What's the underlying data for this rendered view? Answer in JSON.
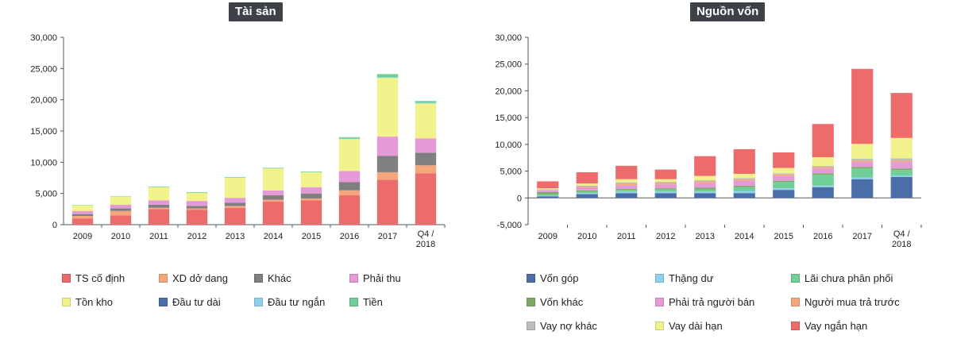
{
  "chart_data": [
    {
      "type": "bar",
      "stacked": true,
      "title": "Tài sản",
      "xlabel": "",
      "ylabel": "",
      "ylim": [
        0,
        30000
      ],
      "yticks": [
        0,
        5000,
        10000,
        15000,
        20000,
        25000,
        30000
      ],
      "ytick_labels": [
        "0",
        "5,000",
        "10,000",
        "15,000",
        "20,000",
        "25,000",
        "30,000"
      ],
      "grid": false,
      "legend_position": "bottom",
      "categories": [
        "2009",
        "2010",
        "2011",
        "2012",
        "2013",
        "2014",
        "2015",
        "2016",
        "2017",
        "Q4 / 2018"
      ],
      "series": [
        {
          "name": "TS cố định",
          "color": "#ee6b6b",
          "values": [
            1000,
            1500,
            2500,
            2400,
            2700,
            3700,
            3900,
            4700,
            7200,
            8200
          ]
        },
        {
          "name": "XD dở dang",
          "color": "#f4a77c",
          "values": [
            400,
            700,
            200,
            200,
            300,
            300,
            300,
            800,
            1200,
            1300
          ]
        },
        {
          "name": "Khác",
          "color": "#7f7f7f",
          "values": [
            300,
            400,
            500,
            400,
            500,
            700,
            800,
            1300,
            2600,
            2000
          ]
        },
        {
          "name": "Phải thu",
          "color": "#e59ad8",
          "values": [
            500,
            600,
            700,
            800,
            800,
            800,
            1000,
            1800,
            3100,
            2300
          ]
        },
        {
          "name": "Tồn kho",
          "color": "#f2f28c",
          "values": [
            900,
            1300,
            2100,
            1300,
            3200,
            3500,
            2400,
            5100,
            9400,
            5600
          ]
        },
        {
          "name": "Đầu tư dài",
          "color": "#4a6ea8",
          "values": [
            0,
            0,
            0,
            0,
            0,
            0,
            0,
            0,
            0,
            0
          ]
        },
        {
          "name": "Đầu tư ngắn",
          "color": "#8fd0ec",
          "values": [
            0,
            0,
            0,
            0,
            0,
            0,
            0,
            100,
            100,
            100
          ]
        },
        {
          "name": "Tiền",
          "color": "#6fcf97",
          "values": [
            50,
            50,
            100,
            100,
            100,
            100,
            100,
            200,
            500,
            300
          ]
        }
      ]
    },
    {
      "type": "bar",
      "stacked": true,
      "title": "Nguồn vốn",
      "xlabel": "",
      "ylabel": "",
      "ylim": [
        -5000,
        30000
      ],
      "yticks": [
        -5000,
        0,
        5000,
        10000,
        15000,
        20000,
        25000,
        30000
      ],
      "ytick_labels": [
        "-5,000",
        "0",
        "5,000",
        "10,000",
        "15,000",
        "20,000",
        "25,000",
        "30,000"
      ],
      "grid": false,
      "legend_position": "bottom",
      "categories": [
        "2009",
        "2010",
        "2011",
        "2012",
        "2013",
        "2014",
        "2015",
        "2016",
        "2017",
        "Q4 / 2018"
      ],
      "series": [
        {
          "name": "Vốn góp",
          "color": "#4a6ea8",
          "values": [
            300,
            700,
            900,
            900,
            900,
            900,
            1500,
            2000,
            3500,
            3900
          ]
        },
        {
          "name": "Thặng dư",
          "color": "#8fd0ec",
          "values": [
            100,
            200,
            300,
            300,
            300,
            400,
            300,
            300,
            300,
            300
          ]
        },
        {
          "name": "Lãi chưa phân phối",
          "color": "#6fcf97",
          "values": [
            300,
            300,
            300,
            400,
            400,
            700,
            1200,
            2000,
            1700,
            1000
          ]
        },
        {
          "name": "Vốn khác",
          "color": "#7fa868",
          "values": [
            400,
            200,
            200,
            200,
            300,
            300,
            200,
            300,
            300,
            300
          ]
        },
        {
          "name": "Phải trả người bán",
          "color": "#e59ad8",
          "values": [
            300,
            500,
            700,
            700,
            900,
            900,
            900,
            900,
            900,
            1200
          ]
        },
        {
          "name": "Người mua trả trước",
          "color": "#f4a77c",
          "values": [
            100,
            200,
            300,
            300,
            300,
            300,
            300,
            300,
            300,
            300
          ]
        },
        {
          "name": "Vay nợ khác",
          "color": "#bdbdbd",
          "values": [
            100,
            200,
            200,
            200,
            200,
            200,
            200,
            200,
            300,
            400
          ]
        },
        {
          "name": "Vay dài hạn",
          "color": "#f2f28c",
          "values": [
            200,
            400,
            600,
            500,
            800,
            800,
            1000,
            1600,
            2800,
            3800
          ]
        },
        {
          "name": "Vay ngắn hạn",
          "color": "#ee6b6b",
          "values": [
            1300,
            2100,
            2500,
            1800,
            3700,
            4600,
            2900,
            6200,
            14000,
            8400
          ]
        }
      ]
    }
  ]
}
